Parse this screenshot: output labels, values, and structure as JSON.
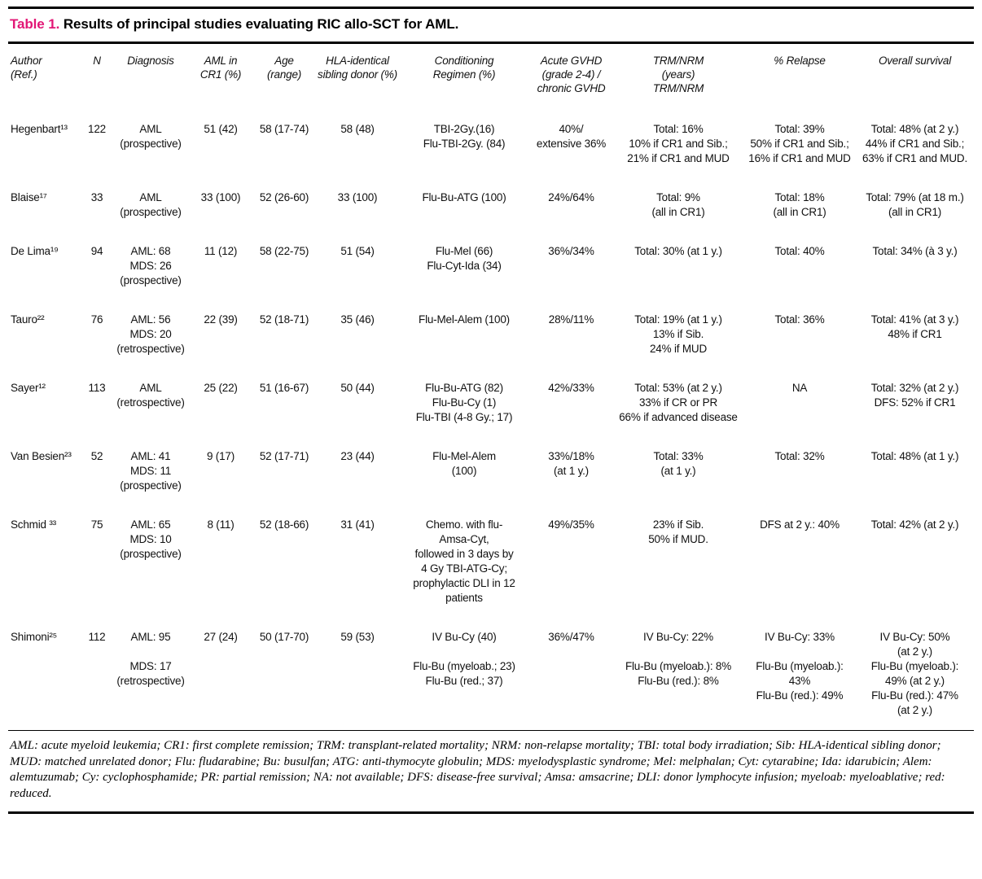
{
  "colors": {
    "accent_pink": "#e21776",
    "text": "#000000",
    "background": "#ffffff"
  },
  "title": {
    "label": "Table 1.",
    "text": " Results of principal studies evaluating RIC allo-SCT for AML."
  },
  "table": {
    "columns": [
      "Author\n(Ref.)",
      "N",
      "Diagnosis",
      "AML in\nCR1 (%)",
      "Age\n(range)",
      "HLA-identical\nsibling donor (%)",
      "Conditioning\nRegimen (%)",
      "Acute GVHD\n(grade 2-4) /\nchronic GVHD",
      "TRM/NRM\n(years)\nTRM/NRM",
      "% Relapse",
      "Overall survival"
    ],
    "rows": [
      [
        "Hegenbart¹³",
        "122",
        "AML\n(prospective)",
        "51 (42)",
        "58 (17-74)",
        "58 (48)",
        "TBI-2Gy.(16)\nFlu-TBI-2Gy. (84)",
        "40%/\nextensive 36%",
        "Total: 16%\n10% if CR1 and Sib.;\n21% if CR1 and MUD",
        "Total: 39%\n50% if CR1 and Sib.;\n16% if CR1 and MUD",
        "Total: 48% (at 2 y.)\n44% if CR1 and Sib.;\n63% if CR1 and MUD."
      ],
      [
        "Blaise¹⁷",
        "33",
        "AML\n(prospective)",
        "33 (100)",
        "52 (26-60)",
        "33 (100)",
        "Flu-Bu-ATG (100)",
        "24%/64%",
        "Total: 9%\n(all in CR1)",
        "Total: 18%\n(all in CR1)",
        "Total: 79% (at 18 m.)\n(all in CR1)"
      ],
      [
        "De Lima¹⁹",
        "94",
        "AML: 68\nMDS: 26\n(prospective)",
        "11 (12)",
        "58 (22-75)",
        "51 (54)",
        "Flu-Mel (66)\nFlu-Cyt-Ida (34)",
        "36%/34%",
        "Total: 30% (at 1 y.)",
        "Total: 40%",
        "Total: 34% (à 3 y.)"
      ],
      [
        "Tauro²²",
        "76",
        "AML: 56\nMDS: 20\n(retrospective)",
        "22 (39)",
        "52 (18-71)",
        "35 (46)",
        "Flu-Mel-Alem (100)",
        "28%/11%",
        "Total: 19% (at 1 y.)\n13% if Sib.\n24% if MUD",
        "Total: 36%",
        "Total: 41% (at 3 y.)\n48% if CR1"
      ],
      [
        "Sayer¹²",
        "113",
        "AML\n(retrospective)",
        "25 (22)",
        "51 (16-67)",
        "50 (44)",
        "Flu-Bu-ATG (82)\nFlu-Bu-Cy (1)\nFlu-TBI (4-8 Gy.; 17)",
        "42%/33%",
        "Total: 53% (at 2 y.)\n33% if CR or PR\n66% if advanced disease",
        "NA",
        "Total: 32% (at 2 y.)\nDFS: 52% if CR1"
      ],
      [
        "Van Besien²³",
        "52",
        "AML: 41\nMDS: 11\n(prospective)",
        "9 (17)",
        "52 (17-71)",
        "23 (44)",
        "Flu-Mel-Alem\n(100)",
        "33%/18%\n(at 1 y.)",
        "Total: 33%\n(at 1 y.)",
        "Total: 32%",
        "Total: 48% (at 1 y.)"
      ],
      [
        "Schmid ³³",
        "75",
        "AML: 65\nMDS: 10\n(prospective)",
        "8 (11)",
        "52 (18-66)",
        "31 (41)",
        "Chemo. with flu-\nAmsa-Cyt,\nfollowed in 3 days by\n4 Gy TBI-ATG-Cy;\nprophylactic DLI in 12 patients",
        "49%/35%",
        "23% if Sib.\n50% if MUD.",
        "DFS at 2 y.: 40%",
        "Total: 42% (at 2 y.)"
      ],
      [
        "Shimoni²⁵",
        "112",
        "AML: 95\n\nMDS: 17\n(retrospective)",
        "27 (24)",
        "50 (17-70)",
        "59 (53)",
        "IV Bu-Cy (40)\n\nFlu-Bu (myeloab.; 23)\nFlu-Bu (red.; 37)",
        "36%/47%",
        "IV Bu-Cy: 22%\n\nFlu-Bu (myeloab.): 8%\nFlu-Bu (red.): 8%",
        "IV Bu-Cy: 33%\n\nFlu-Bu (myeloab.): 43%\nFlu-Bu (red.): 49%",
        "IV Bu-Cy: 50%\n(at 2 y.)\nFlu-Bu (myeloab.):\n49% (at 2 y.)\nFlu-Bu (red.): 47%\n(at 2 y.)"
      ]
    ]
  },
  "footnote": "AML: acute myeloid leukemia; CR1: first complete remission; TRM: transplant-related mortality; NRM: non-relapse mortality; TBI: total body irradiation; Sib: HLA-identical sibling donor; MUD: matched unrelated donor; Flu: fludarabine; Bu: busulfan; ATG: anti-thymocyte globulin; MDS: myelodysplastic syndrome; Mel: melphalan; Cyt: cytarabine; Ida: idarubicin; Alem: alemtuzumab; Cy: cyclophosphamide; PR: partial remission; NA: not available; DFS: disease-free survival; Amsa: amsacrine; DLI: donor lymphocyte infusion; myeloab: myeloablative; red: reduced."
}
